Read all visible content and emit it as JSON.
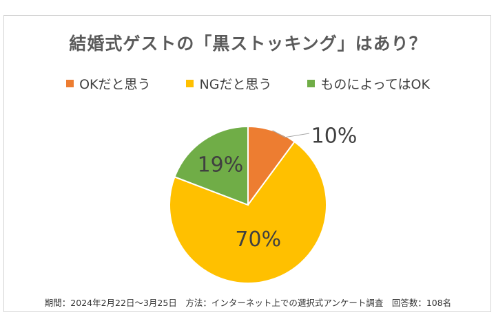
{
  "chart_data": {
    "type": "pie",
    "title": "結婚式ゲストの「黒ストッキング」はあり？",
    "categories": [
      "OKだと思う",
      "NGだと思う",
      "ものによってはOK"
    ],
    "values": [
      10,
      70,
      19
    ],
    "data_labels": [
      "10%",
      "70%",
      "19%"
    ],
    "colors": [
      "#ED7D31",
      "#FFC000",
      "#70AD47"
    ],
    "legend_position": "top"
  },
  "footer": "期間：2024年2月22日～3月25日　方法：インターネット上での選択式アンケート調査　回答数：108名"
}
